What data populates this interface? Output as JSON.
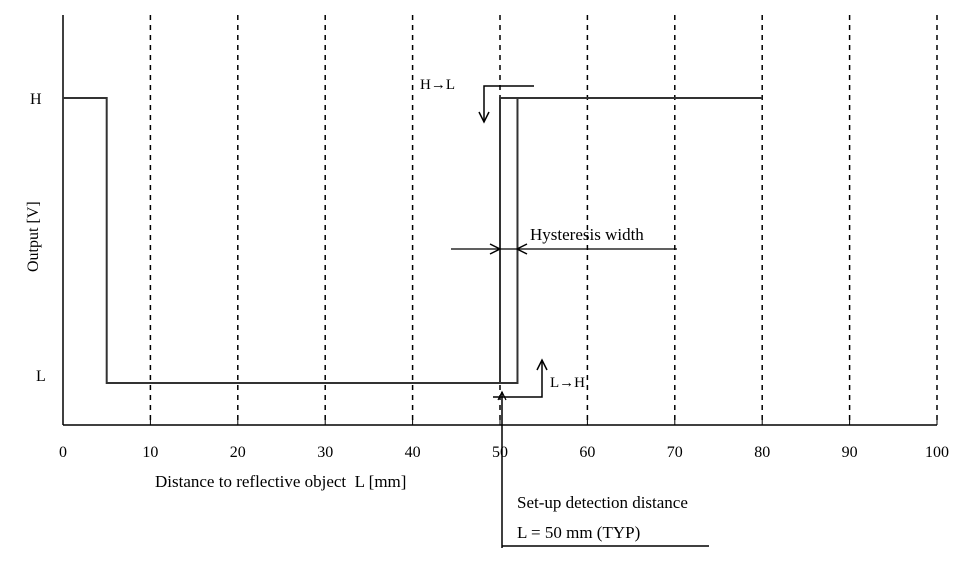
{
  "chart_data": {
    "type": "line",
    "xlabel": "Distance to reflective object  L [mm]",
    "ylabel": "Output  [V]",
    "xlim": [
      0,
      100
    ],
    "x_ticks": [
      "0",
      "10",
      "20",
      "30",
      "40",
      "50",
      "60",
      "70",
      "80",
      "90",
      "100"
    ],
    "y_levels": [
      "H",
      "L"
    ],
    "grid": "vertical dashed",
    "series": [
      {
        "points": [
          [
            0,
            "H"
          ],
          [
            5,
            "H"
          ],
          [
            5,
            "L"
          ],
          [
            52,
            "L"
          ],
          [
            52,
            "H"
          ],
          [
            80,
            "H"
          ]
        ]
      },
      {
        "points": [
          [
            50,
            "L"
          ],
          [
            50,
            "H"
          ],
          [
            52,
            "H"
          ]
        ]
      }
    ],
    "annotations": {
      "h_to_l": "H→L",
      "l_to_h": "L→H",
      "hysteresis": "Hysteresis width",
      "setup_line1": "Set-up detection distance",
      "setup_line2": "L = 50 mm (TYP)"
    }
  }
}
